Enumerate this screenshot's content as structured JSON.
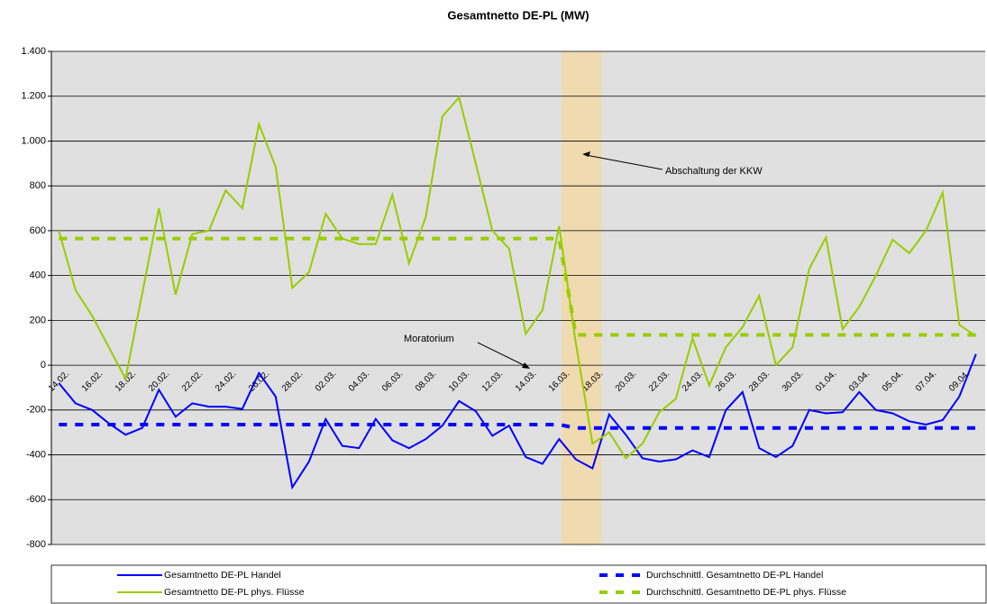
{
  "chart_data": {
    "type": "line",
    "title": "Gesamtnetto DE-PL (MW)",
    "categories": [
      "14.02.",
      null,
      "16.02.",
      null,
      "18.02.",
      null,
      "20.02.",
      null,
      "22.02.",
      null,
      "24.02.",
      null,
      "26.02.",
      null,
      "28.02.",
      null,
      "02.03.",
      null,
      "04.03.",
      null,
      "06.03.",
      null,
      "08.03.",
      null,
      "10.03.",
      null,
      "12.03.",
      null,
      "14.03.",
      null,
      "16.03.",
      null,
      "18.03.",
      null,
      "20.03.",
      null,
      "22.03.",
      null,
      "24.03.",
      null,
      "26.03.",
      null,
      "28.03.",
      null,
      "30.03.",
      null,
      "01.04.",
      null,
      "03.04.",
      null,
      "05.04.",
      null,
      "07.04.",
      null,
      "09.04.",
      null
    ],
    "series": [
      {
        "name": "Gesamtnetto DE-PL Handel",
        "color": "#0000ff",
        "dashed": false,
        "values": [
          -80,
          -170,
          -200,
          -260,
          -310,
          -280,
          -110,
          -230,
          -170,
          -185,
          -185,
          -195,
          -35,
          -140,
          -545,
          -430,
          -240,
          -360,
          -370,
          -240,
          -335,
          -370,
          -330,
          -270,
          -160,
          -205,
          -315,
          -270,
          -410,
          -440,
          -330,
          -420,
          -460,
          -220,
          -310,
          -415,
          -430,
          -420,
          -380,
          -410,
          -200,
          -120,
          -370,
          -410,
          -360,
          -200,
          -215,
          -210,
          -120,
          -200,
          -215,
          -250,
          -265,
          -245,
          -140,
          50
        ]
      },
      {
        "name": "Gesamtnetto DE-PL phys. Flüsse",
        "color": "#99cc00",
        "dashed": false,
        "values": [
          600,
          335,
          220,
          80,
          -60,
          320,
          700,
          315,
          585,
          600,
          780,
          700,
          1075,
          885,
          345,
          415,
          675,
          565,
          540,
          540,
          760,
          455,
          660,
          1110,
          1195,
          900,
          600,
          520,
          140,
          245,
          620,
          100,
          -350,
          -300,
          -415,
          -350,
          -210,
          -150,
          120,
          -90,
          80,
          170,
          310,
          0,
          80,
          430,
          570,
          160,
          260,
          400,
          560,
          500,
          600,
          770,
          180,
          130
        ]
      },
      {
        "name": "Durchschnittl. Gesamtnetto DE-PL Handel",
        "color": "#0000ff",
        "dashed": true,
        "values": [
          -265,
          -265,
          -265,
          -265,
          -265,
          -265,
          -265,
          -265,
          -265,
          -265,
          -265,
          -265,
          -265,
          -265,
          -265,
          -265,
          -265,
          -265,
          -265,
          -265,
          -265,
          -265,
          -265,
          -265,
          -265,
          -265,
          -265,
          -265,
          -265,
          -265,
          -265,
          -280,
          -280,
          -280,
          -280,
          -280,
          -280,
          -280,
          -280,
          -280,
          -280,
          -280,
          -280,
          -280,
          -280,
          -280,
          -280,
          -280,
          -280,
          -280,
          -280,
          -280,
          -280,
          -280,
          -280,
          -280
        ]
      },
      {
        "name": "Durchschnittl. Gesamtnetto DE-PL phys. Flüsse",
        "color": "#99cc00",
        "dashed": true,
        "values": [
          565,
          565,
          565,
          565,
          565,
          565,
          565,
          565,
          565,
          565,
          565,
          565,
          565,
          565,
          565,
          565,
          565,
          565,
          565,
          565,
          565,
          565,
          565,
          565,
          565,
          565,
          565,
          565,
          565,
          565,
          565,
          135,
          135,
          135,
          135,
          135,
          135,
          135,
          135,
          135,
          135,
          135,
          135,
          135,
          135,
          135,
          135,
          135,
          135,
          135,
          135,
          135,
          135,
          135,
          135,
          135
        ]
      }
    ],
    "ylim": [
      -800,
      1400
    ],
    "yticks": [
      -800,
      -600,
      -400,
      -200,
      0,
      200,
      400,
      600,
      800,
      {
        "value": 1000,
        "label": "1.000"
      },
      {
        "value": 1200,
        "label": "1.200"
      },
      {
        "value": 1400,
        "label": "1.400"
      }
    ],
    "grid": true,
    "annotations": [
      "Abschaltung der KKW",
      "Moratorium"
    ]
  }
}
